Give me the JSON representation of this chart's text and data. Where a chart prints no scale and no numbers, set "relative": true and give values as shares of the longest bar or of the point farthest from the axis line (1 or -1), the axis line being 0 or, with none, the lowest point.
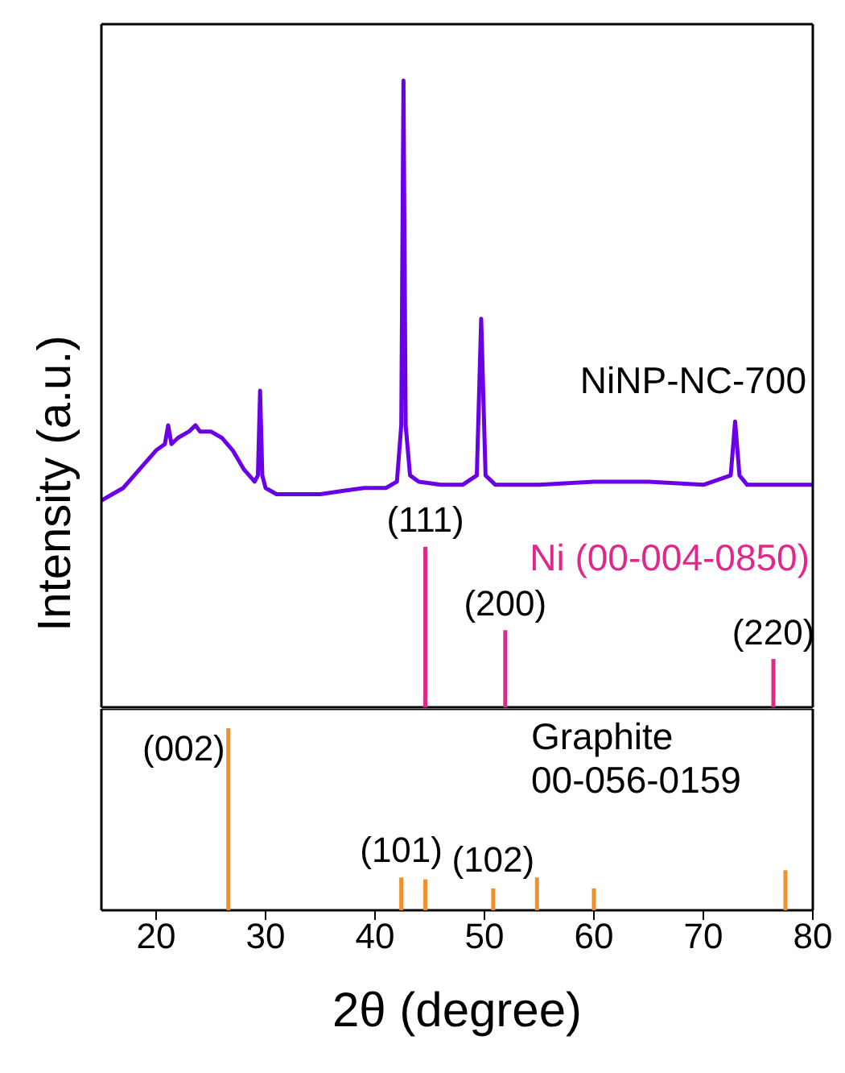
{
  "chart_data": [
    {
      "type": "line",
      "relative": true,
      "ylabel": "Intensity (a.u.)",
      "xlim": [
        15,
        80
      ],
      "tick_labels": false,
      "marker": "none",
      "line_style": "solid",
      "series": [
        {
          "name": "NiNP-NC-700",
          "type": "line",
          "color": "#6a00e8",
          "x": [
            15,
            16,
            17,
            18,
            19,
            20,
            20.8,
            21.1,
            21.4,
            22,
            23,
            23.6,
            24,
            25,
            26,
            27,
            28,
            29,
            29.3,
            29.5,
            29.7,
            30,
            31,
            33,
            35,
            37,
            39,
            41,
            42,
            42.4,
            42.6,
            42.8,
            43.2,
            44,
            46,
            48,
            49.3,
            49.7,
            50.1,
            51,
            55,
            60,
            65,
            70,
            72.5,
            72.9,
            73.3,
            74,
            77,
            80
          ],
          "values": [
            0.33,
            0.34,
            0.35,
            0.37,
            0.39,
            0.41,
            0.42,
            0.45,
            0.42,
            0.43,
            0.44,
            0.45,
            0.44,
            0.44,
            0.43,
            0.41,
            0.38,
            0.36,
            0.37,
            0.505,
            0.37,
            0.35,
            0.34,
            0.34,
            0.34,
            0.345,
            0.35,
            0.35,
            0.36,
            0.45,
            1.0,
            0.45,
            0.37,
            0.36,
            0.355,
            0.355,
            0.37,
            0.62,
            0.37,
            0.355,
            0.355,
            0.36,
            0.36,
            0.355,
            0.37,
            0.456,
            0.37,
            0.355,
            0.355,
            0.355
          ]
        },
        {
          "name": "Ni (00-004-0850)",
          "type": "bar",
          "color": "#e0288a",
          "x": [
            44.6,
            51.9,
            76.4
          ],
          "values": [
            0.256,
            0.123,
            0.077
          ]
        }
      ],
      "annotations": [
        {
          "text": "(111)",
          "x": 44.6,
          "y": 0.256
        },
        {
          "text": "(200)",
          "x": 51.9,
          "y": 0.123
        },
        {
          "text": "(220)",
          "x": 76.4,
          "y": 0.077
        }
      ]
    },
    {
      "type": "bar",
      "relative": true,
      "xlabel": "2θ (degree)",
      "xlim": [
        15,
        80
      ],
      "xticks": [
        20,
        30,
        40,
        50,
        60,
        70,
        80
      ],
      "tick_labels": "x",
      "series": [
        {
          "name": "Graphite 00-056-0159",
          "color": "#f0902a",
          "x": [
            26.6,
            42.4,
            44.6,
            50.8,
            54.8,
            60.0,
            77.5
          ],
          "values": [
            1,
            0.18,
            0.17,
            0.12,
            0.18,
            0.12,
            0.22
          ]
        }
      ],
      "annotations": [
        {
          "text": "(002)",
          "x": 26.6,
          "y": 1
        },
        {
          "text": "(101)",
          "x": 42.4,
          "y": 0.18
        },
        {
          "text": "(102)",
          "x": 50.8,
          "y": 0.12
        }
      ]
    }
  ]
}
